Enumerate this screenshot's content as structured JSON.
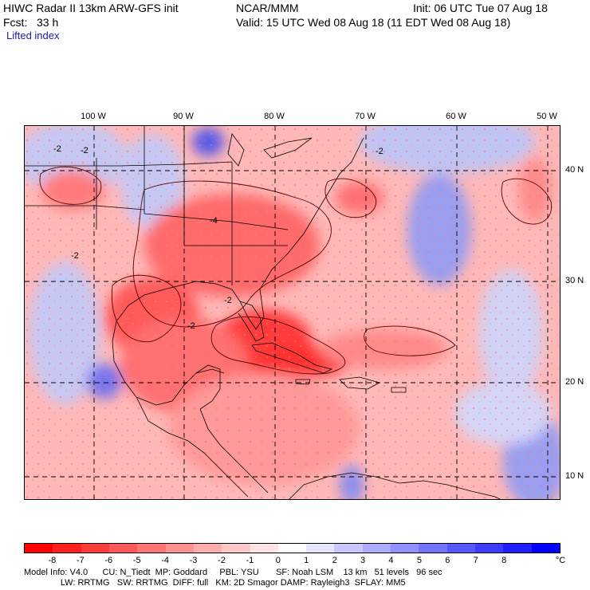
{
  "header": {
    "line1_left": "HIWC Radar II 13km ARW-GFS init",
    "agency": "NCAR/MMM",
    "init": "Init: 06 UTC Tue 07 Aug 18",
    "fcst": "Fcst:   33 h",
    "valid": "Valid: 15 UTC Wed 08 Aug 18 (11 EDT Wed 08 Aug 18)",
    "field": "Lifted index"
  },
  "map": {
    "lon_labels": [
      "100 W",
      "90 W",
      "80 W",
      "70 W",
      "60 W",
      "50 W"
    ],
    "lat_labels": [
      "40 N",
      "30 N",
      "20 N",
      "10 N"
    ],
    "contour_labels": [
      "-2",
      "-2",
      "-2",
      "-4",
      "-2",
      "-2",
      "-2"
    ],
    "colors": {
      "strong_neg": "#ff2a2a",
      "mid_neg": "#ff7070",
      "light_neg": "#ffb4b4",
      "neutral": "#fff0f0",
      "light_pos": "#c6c8f4",
      "mid_pos": "#7474ee",
      "strong_pos": "#2020e0",
      "boundary": "#000000"
    }
  },
  "colorbar": {
    "colors": [
      "#ff0000",
      "#ff2020",
      "#ff3c3c",
      "#ff5858",
      "#ff7474",
      "#ff9090",
      "#ffacac",
      "#ffc8c8",
      "#ffe4e4",
      "#ffffff",
      "#e4e4ff",
      "#c8c8ff",
      "#acacff",
      "#9090ff",
      "#7474ff",
      "#5858ff",
      "#3c3cff",
      "#2020ff",
      "#0000ff"
    ],
    "ticks": [
      "-8",
      "-7",
      "-6",
      "-5",
      "-4",
      "-3",
      "-2",
      "-1",
      "0",
      "1",
      "2",
      "3",
      "4",
      "5",
      "6",
      "7",
      "8"
    ],
    "unit": "°C"
  },
  "footer": {
    "line1": "Model Info: V4.0      CU: N_Tiedt  MP: Goddard     PBL: YSU       SF: Noah LSM    13 km   51 levels   96 sec",
    "line2": "               LW: RRTMG   SW: RRTMG  DIFF: full   KM: 2D Smagor DAMP: Rayleigh3  SFLAY: MM5"
  }
}
